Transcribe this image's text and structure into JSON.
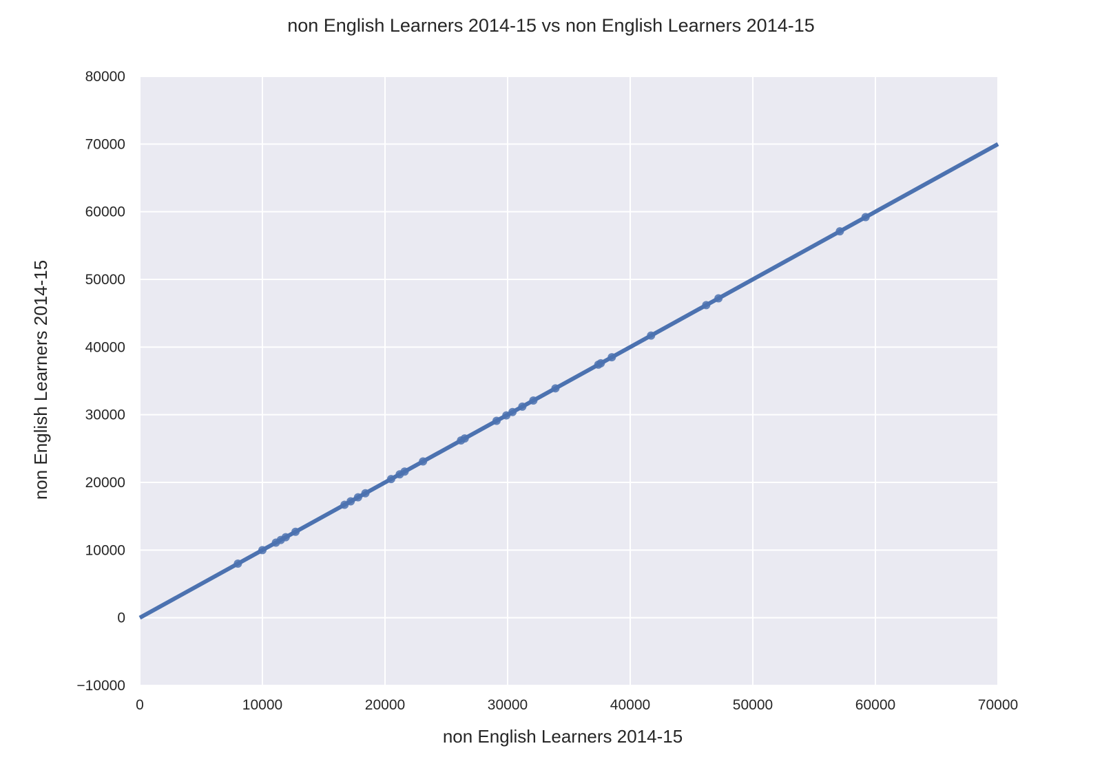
{
  "chart_data": {
    "type": "scatter",
    "title": "non English Learners 2014-15 vs non English Learners 2014-15",
    "xlabel": "non English Learners 2014-15",
    "ylabel": "non English Learners 2014-15",
    "xlim": [
      0,
      70000
    ],
    "ylim": [
      -10000,
      80000
    ],
    "xticks": [
      0,
      10000,
      20000,
      30000,
      40000,
      50000,
      60000,
      70000
    ],
    "yticks": [
      -10000,
      0,
      10000,
      20000,
      30000,
      40000,
      50000,
      60000,
      70000,
      80000
    ],
    "xtick_labels": [
      "0",
      "10000",
      "20000",
      "30000",
      "40000",
      "50000",
      "60000",
      "70000"
    ],
    "ytick_labels": [
      "−10000",
      "0",
      "10000",
      "20000",
      "30000",
      "40000",
      "50000",
      "60000",
      "70000",
      "80000"
    ],
    "grid": true,
    "colors": {
      "background": "#eaeaf2",
      "grid": "#ffffff",
      "series": "#4c72b0"
    },
    "regression_line": {
      "x": [
        0,
        70000
      ],
      "y": [
        0,
        70000
      ]
    },
    "points": [
      {
        "x": 8000,
        "y": 8000
      },
      {
        "x": 10000,
        "y": 10000
      },
      {
        "x": 11100,
        "y": 11100
      },
      {
        "x": 11500,
        "y": 11500
      },
      {
        "x": 11900,
        "y": 11900
      },
      {
        "x": 12700,
        "y": 12700
      },
      {
        "x": 16700,
        "y": 16700
      },
      {
        "x": 17200,
        "y": 17200
      },
      {
        "x": 17800,
        "y": 17800
      },
      {
        "x": 18400,
        "y": 18400
      },
      {
        "x": 20500,
        "y": 20500
      },
      {
        "x": 21200,
        "y": 21200
      },
      {
        "x": 21600,
        "y": 21600
      },
      {
        "x": 23100,
        "y": 23100
      },
      {
        "x": 26200,
        "y": 26200
      },
      {
        "x": 26500,
        "y": 26500
      },
      {
        "x": 29100,
        "y": 29100
      },
      {
        "x": 29900,
        "y": 29900
      },
      {
        "x": 30400,
        "y": 30400
      },
      {
        "x": 31200,
        "y": 31200
      },
      {
        "x": 32100,
        "y": 32100
      },
      {
        "x": 33900,
        "y": 33900
      },
      {
        "x": 37400,
        "y": 37400
      },
      {
        "x": 37600,
        "y": 37600
      },
      {
        "x": 38500,
        "y": 38500
      },
      {
        "x": 41700,
        "y": 41700
      },
      {
        "x": 46200,
        "y": 46200
      },
      {
        "x": 47200,
        "y": 47200
      },
      {
        "x": 57100,
        "y": 57100
      },
      {
        "x": 59200,
        "y": 59200
      }
    ]
  }
}
